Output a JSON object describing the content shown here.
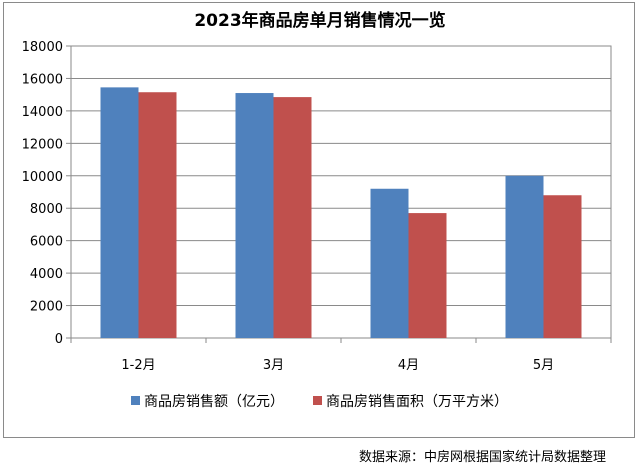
{
  "chart_data": {
    "type": "bar",
    "title": "2023年商品房单月销售情况一览",
    "categories": [
      "1-2月",
      "3月",
      "4月",
      "5月"
    ],
    "series": [
      {
        "name": "商品房销售额（亿元）",
        "color": "#4f81bd",
        "values": [
          15450,
          15100,
          9200,
          10000
        ]
      },
      {
        "name": "商品房销售面积（万平方米）",
        "color": "#c0504d",
        "values": [
          15150,
          14850,
          7700,
          8800
        ]
      }
    ],
    "yticks": [
      "0",
      "2000",
      "4000",
      "6000",
      "8000",
      "10000",
      "12000",
      "14000",
      "16000",
      "18000"
    ],
    "ylim": [
      0,
      18000
    ],
    "grid": true,
    "legend_position": "bottom"
  },
  "footer": {
    "source": "数据来源：中房网根据国家统计局数据整理"
  }
}
